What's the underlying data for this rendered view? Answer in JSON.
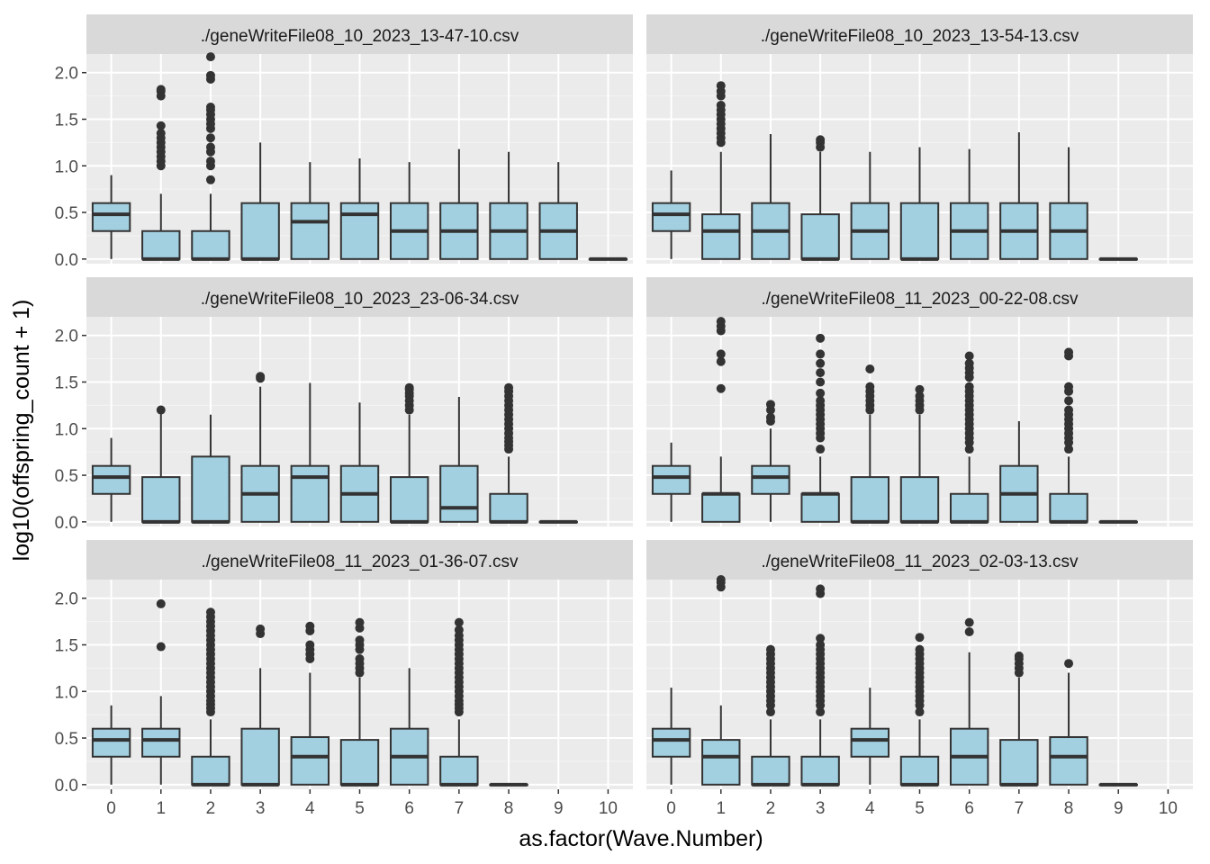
{
  "chart_data": {
    "type": "boxplot",
    "facet_layout": "3 rows x 2 columns",
    "x_label": "as.factor(Wave.Number)",
    "y_label": "log10(offspring_count + 1)",
    "x_categories": [
      "0",
      "1",
      "2",
      "3",
      "4",
      "5",
      "6",
      "7",
      "8",
      "9",
      "10"
    ],
    "y_ticks": [
      "0.0",
      "0.5",
      "1.0",
      "1.5",
      "2.0"
    ],
    "y_tick_values": [
      0,
      0.5,
      1.0,
      1.5,
      2.0
    ],
    "y_range": [
      -0.05,
      2.2
    ],
    "panel_background": "#ebebeb",
    "strip_background": "#d9d9d9",
    "box_fill": "#a2d0e1",
    "line_color": "#333333",
    "panels": [
      {
        "strip": "./geneWriteFile08_10_2023_13-47-10.csv",
        "boxes": [
          {
            "wave": "0",
            "q1": 0.3,
            "median": 0.48,
            "q3": 0.6,
            "wmin": 0.0,
            "wmax": 0.9,
            "outliers": []
          },
          {
            "wave": "1",
            "q1": 0.0,
            "median": 0.0,
            "q3": 0.3,
            "wmin": 0.0,
            "wmax": 0.7,
            "outliers": [
              1.0,
              1.05,
              1.1,
              1.15,
              1.2,
              1.25,
              1.3,
              1.35,
              1.43,
              1.75,
              1.8,
              1.82
            ]
          },
          {
            "wave": "2",
            "q1": 0.0,
            "median": 0.0,
            "q3": 0.3,
            "wmin": 0.0,
            "wmax": 0.7,
            "outliers": [
              0.85,
              1.0,
              1.05,
              1.15,
              1.2,
              1.3,
              1.4,
              1.45,
              1.5,
              1.55,
              1.6,
              1.63,
              1.93,
              1.97,
              2.17
            ]
          },
          {
            "wave": "3",
            "q1": 0.0,
            "median": 0.0,
            "q3": 0.6,
            "wmin": 0.0,
            "wmax": 1.25,
            "outliers": []
          },
          {
            "wave": "4",
            "q1": 0.0,
            "median": 0.4,
            "q3": 0.6,
            "wmin": 0.0,
            "wmax": 1.04,
            "outliers": []
          },
          {
            "wave": "5",
            "q1": 0.0,
            "median": 0.48,
            "q3": 0.6,
            "wmin": 0.0,
            "wmax": 1.08,
            "outliers": []
          },
          {
            "wave": "6",
            "q1": 0.0,
            "median": 0.3,
            "q3": 0.6,
            "wmin": 0.0,
            "wmax": 1.04,
            "outliers": []
          },
          {
            "wave": "7",
            "q1": 0.0,
            "median": 0.3,
            "q3": 0.6,
            "wmin": 0.0,
            "wmax": 1.18,
            "outliers": []
          },
          {
            "wave": "8",
            "q1": 0.0,
            "median": 0.3,
            "q3": 0.6,
            "wmin": 0.0,
            "wmax": 1.15,
            "outliers": []
          },
          {
            "wave": "9",
            "q1": 0.0,
            "median": 0.3,
            "q3": 0.6,
            "wmin": 0.0,
            "wmax": 1.04,
            "outliers": []
          },
          {
            "wave": "10",
            "q1": 0.0,
            "median": 0.0,
            "q3": 0.0,
            "wmin": 0.0,
            "wmax": 0.0,
            "outliers": []
          }
        ]
      },
      {
        "strip": "./geneWriteFile08_10_2023_13-54-13.csv",
        "boxes": [
          {
            "wave": "0",
            "q1": 0.3,
            "median": 0.48,
            "q3": 0.6,
            "wmin": 0.0,
            "wmax": 0.95,
            "outliers": []
          },
          {
            "wave": "1",
            "q1": 0.0,
            "median": 0.3,
            "q3": 0.48,
            "wmin": 0.0,
            "wmax": 1.15,
            "outliers": [
              1.25,
              1.3,
              1.35,
              1.4,
              1.45,
              1.5,
              1.55,
              1.6,
              1.65,
              1.75,
              1.8,
              1.86
            ]
          },
          {
            "wave": "2",
            "q1": 0.0,
            "median": 0.3,
            "q3": 0.6,
            "wmin": 0.0,
            "wmax": 1.34,
            "outliers": []
          },
          {
            "wave": "3",
            "q1": 0.0,
            "median": 0.0,
            "q3": 0.48,
            "wmin": 0.0,
            "wmax": 1.15,
            "outliers": [
              1.2,
              1.25,
              1.28
            ]
          },
          {
            "wave": "4",
            "q1": 0.0,
            "median": 0.3,
            "q3": 0.6,
            "wmin": 0.0,
            "wmax": 1.15,
            "outliers": []
          },
          {
            "wave": "5",
            "q1": 0.0,
            "median": 0.0,
            "q3": 0.6,
            "wmin": 0.0,
            "wmax": 1.2,
            "outliers": []
          },
          {
            "wave": "6",
            "q1": 0.0,
            "median": 0.3,
            "q3": 0.6,
            "wmin": 0.0,
            "wmax": 1.18,
            "outliers": []
          },
          {
            "wave": "7",
            "q1": 0.0,
            "median": 0.3,
            "q3": 0.6,
            "wmin": 0.0,
            "wmax": 1.36,
            "outliers": []
          },
          {
            "wave": "8",
            "q1": 0.0,
            "median": 0.3,
            "q3": 0.6,
            "wmin": 0.0,
            "wmax": 1.2,
            "outliers": []
          },
          {
            "wave": "9",
            "q1": 0.0,
            "median": 0.0,
            "q3": 0.0,
            "wmin": 0.0,
            "wmax": 0.0,
            "outliers": []
          }
        ]
      },
      {
        "strip": "./geneWriteFile08_10_2023_23-06-34.csv",
        "boxes": [
          {
            "wave": "0",
            "q1": 0.3,
            "median": 0.48,
            "q3": 0.6,
            "wmin": 0.0,
            "wmax": 0.9,
            "outliers": []
          },
          {
            "wave": "1",
            "q1": 0.0,
            "median": 0.0,
            "q3": 0.48,
            "wmin": 0.0,
            "wmax": 1.2,
            "outliers": [
              1.2
            ]
          },
          {
            "wave": "2",
            "q1": 0.0,
            "median": 0.0,
            "q3": 0.7,
            "wmin": 0.0,
            "wmax": 1.15,
            "outliers": []
          },
          {
            "wave": "3",
            "q1": 0.0,
            "median": 0.3,
            "q3": 0.6,
            "wmin": 0.0,
            "wmax": 1.45,
            "outliers": [
              1.54,
              1.56
            ]
          },
          {
            "wave": "4",
            "q1": 0.0,
            "median": 0.48,
            "q3": 0.6,
            "wmin": 0.0,
            "wmax": 1.49,
            "outliers": []
          },
          {
            "wave": "5",
            "q1": 0.0,
            "median": 0.3,
            "q3": 0.6,
            "wmin": 0.0,
            "wmax": 1.28,
            "outliers": []
          },
          {
            "wave": "6",
            "q1": 0.0,
            "median": 0.0,
            "q3": 0.48,
            "wmin": 0.0,
            "wmax": 1.15,
            "outliers": [
              1.2,
              1.25,
              1.3,
              1.35,
              1.38,
              1.42,
              1.44
            ]
          },
          {
            "wave": "7",
            "q1": 0.0,
            "median": 0.15,
            "q3": 0.6,
            "wmin": 0.0,
            "wmax": 1.34,
            "outliers": []
          },
          {
            "wave": "8",
            "q1": 0.0,
            "median": 0.0,
            "q3": 0.3,
            "wmin": 0.0,
            "wmax": 0.7,
            "outliers": [
              0.78,
              0.82,
              0.86,
              0.9,
              0.95,
              1.0,
              1.05,
              1.1,
              1.15,
              1.2,
              1.25,
              1.3,
              1.35,
              1.4,
              1.44
            ]
          },
          {
            "wave": "9",
            "q1": 0.0,
            "median": 0.0,
            "q3": 0.0,
            "wmin": 0.0,
            "wmax": 0.0,
            "outliers": []
          }
        ]
      },
      {
        "strip": "./geneWriteFile08_11_2023_00-22-08.csv",
        "boxes": [
          {
            "wave": "0",
            "q1": 0.3,
            "median": 0.48,
            "q3": 0.6,
            "wmin": 0.0,
            "wmax": 0.85,
            "outliers": []
          },
          {
            "wave": "1",
            "q1": 0.0,
            "median": 0.3,
            "q3": 0.3,
            "wmin": 0.0,
            "wmax": 0.7,
            "outliers": [
              1.43,
              1.72,
              1.8,
              2.05,
              2.1,
              2.15
            ]
          },
          {
            "wave": "2",
            "q1": 0.3,
            "median": 0.48,
            "q3": 0.6,
            "wmin": 0.0,
            "wmax": 1.0,
            "outliers": [
              1.08,
              1.12,
              1.2,
              1.26
            ]
          },
          {
            "wave": "3",
            "q1": 0.0,
            "median": 0.3,
            "q3": 0.3,
            "wmin": 0.0,
            "wmax": 0.7,
            "outliers": [
              0.78,
              0.9,
              0.95,
              1.0,
              1.05,
              1.1,
              1.15,
              1.2,
              1.25,
              1.3,
              1.38,
              1.5,
              1.6,
              1.7,
              1.8,
              1.97
            ]
          },
          {
            "wave": "4",
            "q1": 0.0,
            "median": 0.0,
            "q3": 0.48,
            "wmin": 0.0,
            "wmax": 1.15,
            "outliers": [
              1.2,
              1.25,
              1.3,
              1.35,
              1.4,
              1.45,
              1.64
            ]
          },
          {
            "wave": "5",
            "q1": 0.0,
            "median": 0.0,
            "q3": 0.48,
            "wmin": 0.0,
            "wmax": 1.15,
            "outliers": [
              1.2,
              1.25,
              1.3,
              1.35,
              1.42
            ]
          },
          {
            "wave": "6",
            "q1": 0.0,
            "median": 0.0,
            "q3": 0.3,
            "wmin": 0.0,
            "wmax": 0.7,
            "outliers": [
              0.78,
              0.85,
              0.9,
              0.95,
              1.0,
              1.05,
              1.1,
              1.15,
              1.2,
              1.25,
              1.3,
              1.35,
              1.4,
              1.45,
              1.55,
              1.6,
              1.65,
              1.7,
              1.78
            ]
          },
          {
            "wave": "7",
            "q1": 0.0,
            "median": 0.3,
            "q3": 0.6,
            "wmin": 0.0,
            "wmax": 1.08,
            "outliers": []
          },
          {
            "wave": "8",
            "q1": 0.0,
            "median": 0.0,
            "q3": 0.3,
            "wmin": 0.0,
            "wmax": 0.7,
            "outliers": [
              0.78,
              0.85,
              0.9,
              0.95,
              1.0,
              1.05,
              1.1,
              1.15,
              1.2,
              1.3,
              1.4,
              1.45,
              1.78,
              1.82
            ]
          },
          {
            "wave": "9",
            "q1": 0.0,
            "median": 0.0,
            "q3": 0.0,
            "wmin": 0.0,
            "wmax": 0.0,
            "outliers": []
          }
        ]
      },
      {
        "strip": "./geneWriteFile08_11_2023_01-36-07.csv",
        "boxes": [
          {
            "wave": "0",
            "q1": 0.3,
            "median": 0.48,
            "q3": 0.6,
            "wmin": 0.0,
            "wmax": 0.85,
            "outliers": []
          },
          {
            "wave": "1",
            "q1": 0.3,
            "median": 0.48,
            "q3": 0.6,
            "wmin": 0.0,
            "wmax": 0.95,
            "outliers": [
              1.48,
              1.94
            ]
          },
          {
            "wave": "2",
            "q1": 0.0,
            "median": 0.0,
            "q3": 0.3,
            "wmin": 0.0,
            "wmax": 0.7,
            "outliers": [
              0.78,
              0.82,
              0.86,
              0.9,
              0.95,
              1.0,
              1.05,
              1.1,
              1.15,
              1.2,
              1.25,
              1.3,
              1.35,
              1.4,
              1.45,
              1.5,
              1.55,
              1.6,
              1.65,
              1.7,
              1.75,
              1.8,
              1.85
            ]
          },
          {
            "wave": "3",
            "q1": 0.0,
            "median": 0.0,
            "q3": 0.6,
            "wmin": 0.0,
            "wmax": 1.25,
            "outliers": [
              1.62,
              1.67
            ]
          },
          {
            "wave": "4",
            "q1": 0.0,
            "median": 0.3,
            "q3": 0.51,
            "wmin": 0.0,
            "wmax": 1.2,
            "outliers": [
              1.35,
              1.4,
              1.45,
              1.5,
              1.65,
              1.7
            ]
          },
          {
            "wave": "5",
            "q1": 0.0,
            "median": 0.0,
            "q3": 0.48,
            "wmin": 0.0,
            "wmax": 1.15,
            "outliers": [
              1.2,
              1.25,
              1.3,
              1.35,
              1.45,
              1.5,
              1.55,
              1.68,
              1.74
            ]
          },
          {
            "wave": "6",
            "q1": 0.0,
            "median": 0.3,
            "q3": 0.6,
            "wmin": 0.0,
            "wmax": 1.25,
            "outliers": []
          },
          {
            "wave": "7",
            "q1": 0.0,
            "median": 0.0,
            "q3": 0.3,
            "wmin": 0.0,
            "wmax": 0.7,
            "outliers": [
              0.78,
              0.82,
              0.86,
              0.9,
              0.95,
              1.0,
              1.05,
              1.1,
              1.15,
              1.2,
              1.25,
              1.3,
              1.35,
              1.4,
              1.45,
              1.5,
              1.55,
              1.6,
              1.66,
              1.74
            ]
          },
          {
            "wave": "8",
            "q1": 0.0,
            "median": 0.0,
            "q3": 0.0,
            "wmin": 0.0,
            "wmax": 0.0,
            "outliers": []
          }
        ]
      },
      {
        "strip": "./geneWriteFile08_11_2023_02-03-13.csv",
        "boxes": [
          {
            "wave": "0",
            "q1": 0.3,
            "median": 0.48,
            "q3": 0.6,
            "wmin": 0.0,
            "wmax": 1.04,
            "outliers": []
          },
          {
            "wave": "1",
            "q1": 0.0,
            "median": 0.3,
            "q3": 0.48,
            "wmin": 0.0,
            "wmax": 0.85,
            "outliers": [
              2.12,
              2.17,
              2.2
            ]
          },
          {
            "wave": "2",
            "q1": 0.0,
            "median": 0.0,
            "q3": 0.3,
            "wmin": 0.0,
            "wmax": 0.7,
            "outliers": [
              0.78,
              0.85,
              0.9,
              0.95,
              1.0,
              1.05,
              1.1,
              1.15,
              1.2,
              1.25,
              1.3,
              1.35,
              1.4,
              1.45
            ]
          },
          {
            "wave": "3",
            "q1": 0.0,
            "median": 0.0,
            "q3": 0.3,
            "wmin": 0.0,
            "wmax": 0.7,
            "outliers": [
              0.78,
              0.85,
              0.9,
              0.95,
              1.0,
              1.05,
              1.1,
              1.15,
              1.2,
              1.25,
              1.3,
              1.35,
              1.4,
              1.45,
              1.5,
              1.57,
              2.05,
              2.1
            ]
          },
          {
            "wave": "4",
            "q1": 0.3,
            "median": 0.48,
            "q3": 0.6,
            "wmin": 0.0,
            "wmax": 1.04,
            "outliers": []
          },
          {
            "wave": "5",
            "q1": 0.0,
            "median": 0.0,
            "q3": 0.3,
            "wmin": 0.0,
            "wmax": 0.7,
            "outliers": [
              0.78,
              0.85,
              0.9,
              0.95,
              1.0,
              1.05,
              1.1,
              1.15,
              1.2,
              1.25,
              1.3,
              1.35,
              1.4,
              1.45,
              1.58
            ]
          },
          {
            "wave": "6",
            "q1": 0.0,
            "median": 0.3,
            "q3": 0.6,
            "wmin": 0.0,
            "wmax": 1.42,
            "outliers": [
              1.64,
              1.74
            ]
          },
          {
            "wave": "7",
            "q1": 0.0,
            "median": 0.0,
            "q3": 0.48,
            "wmin": 0.0,
            "wmax": 1.15,
            "outliers": [
              1.2,
              1.25,
              1.3,
              1.35,
              1.38
            ]
          },
          {
            "wave": "8",
            "q1": 0.0,
            "median": 0.3,
            "q3": 0.51,
            "wmin": 0.0,
            "wmax": 1.2,
            "outliers": [
              1.3
            ]
          },
          {
            "wave": "9",
            "q1": 0.0,
            "median": 0.0,
            "q3": 0.0,
            "wmin": 0.0,
            "wmax": 0.0,
            "outliers": []
          }
        ]
      }
    ]
  }
}
